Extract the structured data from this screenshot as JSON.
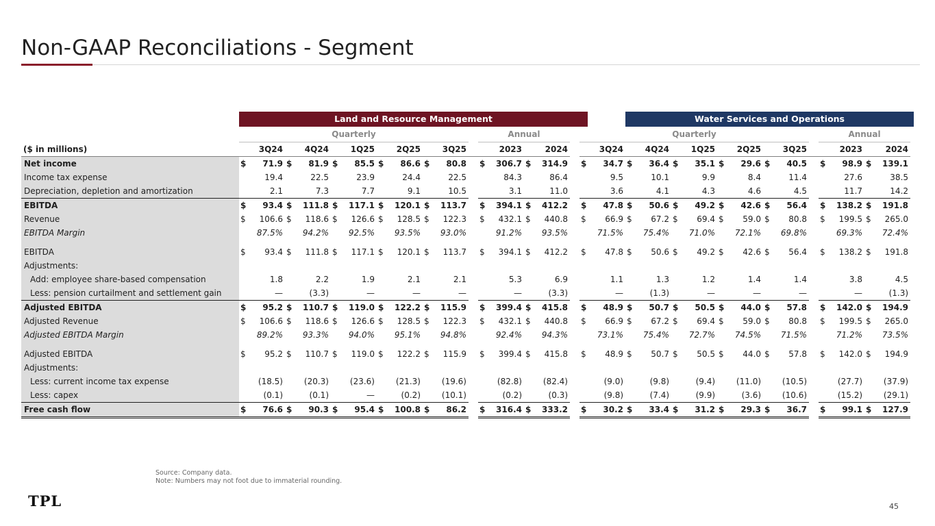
{
  "title": "Non-GAAP Reconciliations - Segment",
  "segments": {
    "lrm": "Land and Resource Management",
    "wso": "Water Services and Operations"
  },
  "subheaders": {
    "quarterly": "Quarterly",
    "annual": "Annual"
  },
  "label_header": "($ in millions)",
  "quarters": [
    "3Q24",
    "4Q24",
    "1Q25",
    "2Q25",
    "3Q25"
  ],
  "years": [
    "2023",
    "2024"
  ],
  "rows": [
    {
      "label": "Net income",
      "style": "bold",
      "dollar": true,
      "lrm": [
        "71.9",
        "81.9",
        "85.5",
        "86.6",
        "80.8"
      ],
      "lrm_a": [
        "306.7",
        "314.9"
      ],
      "wso": [
        "34.7",
        "36.4",
        "35.1",
        "29.6",
        "40.5"
      ],
      "wso_a": [
        "98.9",
        "139.1"
      ]
    },
    {
      "label": "Income tax expense",
      "style": "",
      "dollar": false,
      "lrm": [
        "19.4",
        "22.5",
        "23.9",
        "24.4",
        "22.5"
      ],
      "lrm_a": [
        "84.3",
        "86.4"
      ],
      "wso": [
        "9.5",
        "10.1",
        "9.9",
        "8.4",
        "11.4"
      ],
      "wso_a": [
        "27.6",
        "38.5"
      ]
    },
    {
      "label": "Depreciation, depletion and amortization",
      "style": "",
      "dollar": false,
      "lrm": [
        "2.1",
        "7.3",
        "7.7",
        "9.1",
        "10.5"
      ],
      "lrm_a": [
        "3.1",
        "11.0"
      ],
      "wso": [
        "3.6",
        "4.1",
        "4.3",
        "4.6",
        "4.5"
      ],
      "wso_a": [
        "11.7",
        "14.2"
      ]
    },
    {
      "label": "EBITDA",
      "style": "bold topline",
      "dollar": true,
      "lrm": [
        "93.4",
        "111.8",
        "117.1",
        "120.1",
        "113.7"
      ],
      "lrm_a": [
        "394.1",
        "412.2"
      ],
      "wso": [
        "47.8",
        "50.6",
        "49.2",
        "42.6",
        "56.4"
      ],
      "wso_a": [
        "138.2",
        "191.8"
      ]
    },
    {
      "label": "Revenue",
      "style": "",
      "dollar": true,
      "lrm": [
        "106.6",
        "118.6",
        "126.6",
        "128.5",
        "122.3"
      ],
      "lrm_a": [
        "432.1",
        "440.8"
      ],
      "wso": [
        "66.9",
        "67.2",
        "69.4",
        "59.0",
        "80.8"
      ],
      "wso_a": [
        "199.5",
        "265.0"
      ]
    },
    {
      "label": "EBITDA Margin",
      "style": "ital",
      "dollar": false,
      "center": true,
      "lrm": [
        "87.5%",
        "94.2%",
        "92.5%",
        "93.5%",
        "93.0%"
      ],
      "lrm_a": [
        "91.2%",
        "93.5%"
      ],
      "wso": [
        "71.5%",
        "75.4%",
        "71.0%",
        "72.1%",
        "69.8%"
      ],
      "wso_a": [
        "69.3%",
        "72.4%"
      ]
    },
    {
      "label": "EBITDA",
      "style": "tall",
      "dollar": true,
      "lrm": [
        "93.4",
        "111.8",
        "117.1",
        "120.1",
        "113.7"
      ],
      "lrm_a": [
        "394.1",
        "412.2"
      ],
      "wso": [
        "47.8",
        "50.6",
        "49.2",
        "42.6",
        "56.4"
      ],
      "wso_a": [
        "138.2",
        "191.8"
      ]
    },
    {
      "label": "Adjustments:",
      "style": "",
      "dollar": false,
      "empty": true
    },
    {
      "label": "Add: employee share-based compensation",
      "style": "indent",
      "dollar": false,
      "center": true,
      "lrm": [
        "1.8",
        "2.2",
        "1.9",
        "2.1",
        "2.1"
      ],
      "lrm_a": [
        "5.3",
        "6.9"
      ],
      "wso": [
        "1.1",
        "1.3",
        "1.2",
        "1.4",
        "1.4"
      ],
      "wso_a": [
        "3.8",
        "4.5"
      ]
    },
    {
      "label": "Less: pension curtailment and settlement gain",
      "style": "indent",
      "dollar": false,
      "center": true,
      "lrm": [
        "—",
        "(3.3)",
        "—",
        "—",
        "—"
      ],
      "lrm_a": [
        "—",
        "(3.3)"
      ],
      "wso": [
        "—",
        "(1.3)",
        "—",
        "—",
        "—"
      ],
      "wso_a": [
        "—",
        "(1.3)"
      ]
    },
    {
      "label": "Adjusted EBITDA",
      "style": "bold topline",
      "dollar": true,
      "lrm": [
        "95.2",
        "110.7",
        "119.0",
        "122.2",
        "115.9"
      ],
      "lrm_a": [
        "399.4",
        "415.8"
      ],
      "wso": [
        "48.9",
        "50.7",
        "50.5",
        "44.0",
        "57.8"
      ],
      "wso_a": [
        "142.0",
        "194.9"
      ]
    },
    {
      "label": "Adjusted Revenue",
      "style": "",
      "dollar": true,
      "lrm": [
        "106.6",
        "118.6",
        "126.6",
        "128.5",
        "122.3"
      ],
      "lrm_a": [
        "432.1",
        "440.8"
      ],
      "wso": [
        "66.9",
        "67.2",
        "69.4",
        "59.0",
        "80.8"
      ],
      "wso_a": [
        "199.5",
        "265.0"
      ]
    },
    {
      "label": "Adjusted EBITDA Margin",
      "style": "ital",
      "dollar": false,
      "center": true,
      "lrm": [
        "89.2%",
        "93.3%",
        "94.0%",
        "95.1%",
        "94.8%"
      ],
      "lrm_a": [
        "92.4%",
        "94.3%"
      ],
      "wso": [
        "73.1%",
        "75.4%",
        "72.7%",
        "74.5%",
        "71.5%"
      ],
      "wso_a": [
        "71.2%",
        "73.5%"
      ]
    },
    {
      "label": "Adjusted EBITDA",
      "style": "tall",
      "dollar": true,
      "lrm": [
        "95.2",
        "110.7",
        "119.0",
        "122.2",
        "115.9"
      ],
      "lrm_a": [
        "399.4",
        "415.8"
      ],
      "wso": [
        "48.9",
        "50.7",
        "50.5",
        "44.0",
        "57.8"
      ],
      "wso_a": [
        "142.0",
        "194.9"
      ]
    },
    {
      "label": "Adjustments:",
      "style": "",
      "dollar": false,
      "empty": true
    },
    {
      "label": "Less: current income tax expense",
      "style": "indent",
      "dollar": false,
      "center": true,
      "lrm": [
        "(18.5)",
        "(20.3)",
        "(23.6)",
        "(21.3)",
        "(19.6)"
      ],
      "lrm_a": [
        "(82.8)",
        "(82.4)"
      ],
      "wso": [
        "(9.0)",
        "(9.8)",
        "(9.4)",
        "(11.0)",
        "(10.5)"
      ],
      "wso_a": [
        "(27.7)",
        "(37.9)"
      ]
    },
    {
      "label": "Less: capex",
      "style": "indent",
      "dollar": false,
      "center": true,
      "lrm": [
        "(0.1)",
        "(0.1)",
        "—",
        "(0.2)",
        "(10.1)"
      ],
      "lrm_a": [
        "(0.2)",
        "(0.3)"
      ],
      "wso": [
        "(9.8)",
        "(7.4)",
        "(9.9)",
        "(3.6)",
        "(10.6)"
      ],
      "wso_a": [
        "(15.2)",
        "(29.1)"
      ]
    },
    {
      "label": "Free cash flow",
      "style": "bold topline dbl",
      "dollar": true,
      "lrm": [
        "76.6",
        "90.3",
        "95.4",
        "100.8",
        "86.2"
      ],
      "lrm_a": [
        "316.4",
        "333.2"
      ],
      "wso": [
        "30.2",
        "33.4",
        "31.2",
        "29.3",
        "36.7"
      ],
      "wso_a": [
        "99.1",
        "127.9"
      ]
    }
  ],
  "dollar_sign": "$",
  "footnotes": {
    "source": "Source: Company data.",
    "note": "Note: Numbers may not foot due to immaterial rounding."
  },
  "logo_text": "TPL",
  "page_number": "45"
}
